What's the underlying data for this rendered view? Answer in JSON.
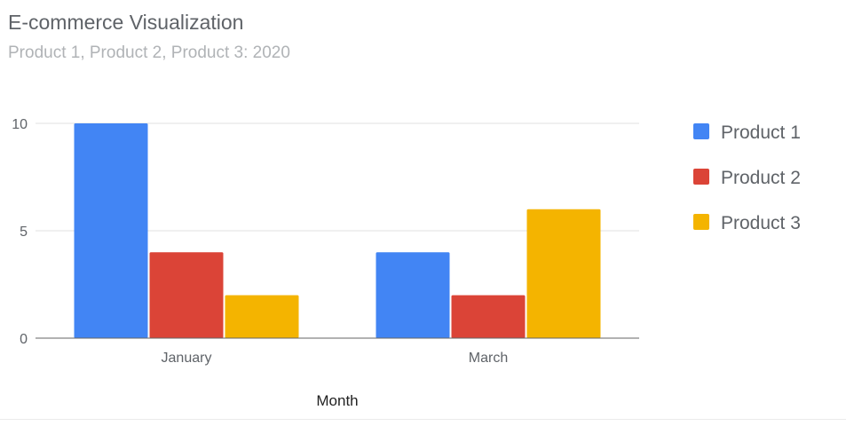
{
  "chart_data": {
    "type": "bar",
    "title": "E-commerce Visualization",
    "subtitle": "Product 1, Product 2, Product 3: 2020",
    "xlabel": "Month",
    "ylabel": "",
    "categories": [
      "January",
      "March"
    ],
    "series": [
      {
        "name": "Product 1",
        "values": [
          10,
          4
        ],
        "color": "#4285f4"
      },
      {
        "name": "Product 2",
        "values": [
          4,
          2
        ],
        "color": "#db4437"
      },
      {
        "name": "Product 3",
        "values": [
          2,
          6
        ],
        "color": "#f4b400"
      }
    ],
    "ylim": [
      0,
      10
    ],
    "yticks": [
      0,
      5,
      10
    ],
    "grid": true,
    "legend": "right"
  }
}
